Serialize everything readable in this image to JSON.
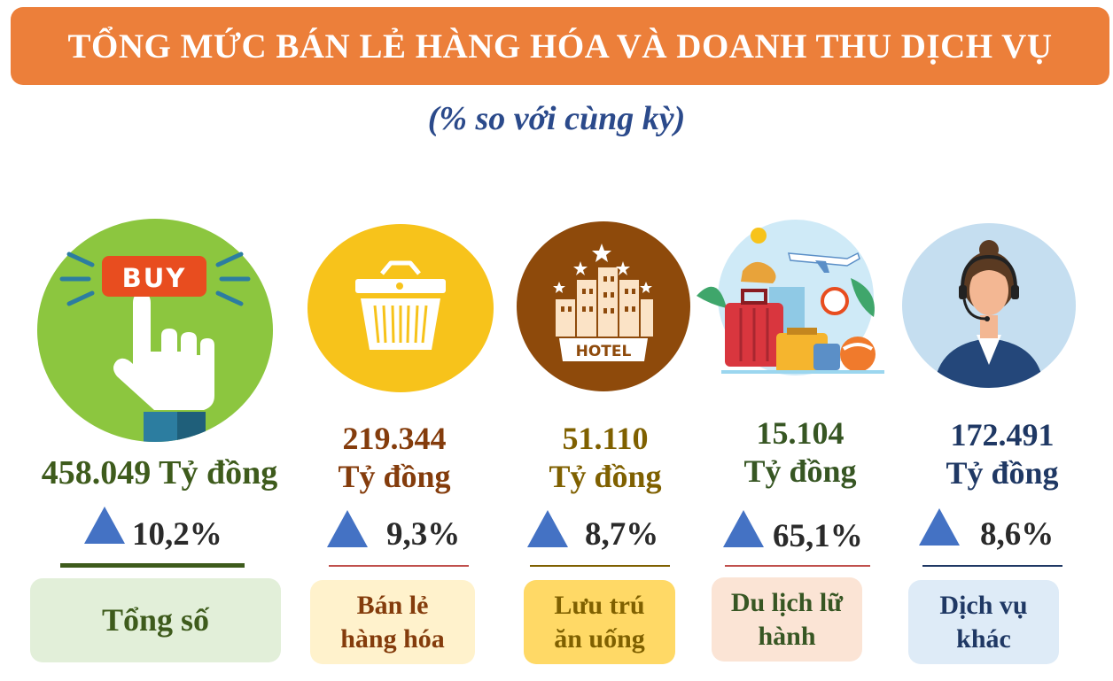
{
  "title": "TỔNG MỨC BÁN LẺ HÀNG HÓA VÀ DOANH THU DỊCH VỤ",
  "subtitle": "(% so với cùng kỳ)",
  "colors": {
    "banner": "#ec7f3a",
    "subtitle": "#2b4a8b",
    "triangle": "#4472c4"
  },
  "icons": {
    "buy_text": "BUY",
    "hotel_text": "HOTEL"
  },
  "items": [
    {
      "name": "Tổng số",
      "amount": "458.049 Tỷ đồng",
      "unit": "",
      "change": "10,2%",
      "icon": "buy-hand-icon",
      "value_color": "#3e5b1c",
      "label_bg": "#e2efd9",
      "label_color": "#3e5b1c",
      "rule_color": "#3e5b1c"
    },
    {
      "name": "Bán lẻ hàng hóa",
      "amount": "219.344",
      "unit": "Tỷ đồng",
      "change": "9,3%",
      "icon": "shopping-basket-icon",
      "value_color": "#843c0c",
      "label_bg": "#fff2cc",
      "label_color": "#843c0c",
      "rule_color": "#c0504d"
    },
    {
      "name": "Lưu trú ăn uống",
      "amount": "51.110",
      "unit": "Tỷ đồng",
      "change": "8,7%",
      "icon": "hotel-icon",
      "value_color": "#7f6000",
      "label_bg": "#ffd966",
      "label_color": "#7f6000",
      "rule_color": "#7f6000"
    },
    {
      "name": "Du lịch lữ hành",
      "amount": "15.104",
      "unit": "Tỷ đồng",
      "change": "65,1%",
      "icon": "travel-luggage-icon",
      "value_color": "#375623",
      "label_bg": "#fbe4d5",
      "label_color": "#375623",
      "rule_color": "#c0504d"
    },
    {
      "name": "Dịch vụ khác",
      "amount": "172.491",
      "unit": "Tỷ đồng",
      "change": "8,6%",
      "icon": "call-center-agent-icon",
      "value_color": "#1f3864",
      "label_bg": "#deebf7",
      "label_color": "#1f3864",
      "rule_color": "#1f3864"
    }
  ]
}
